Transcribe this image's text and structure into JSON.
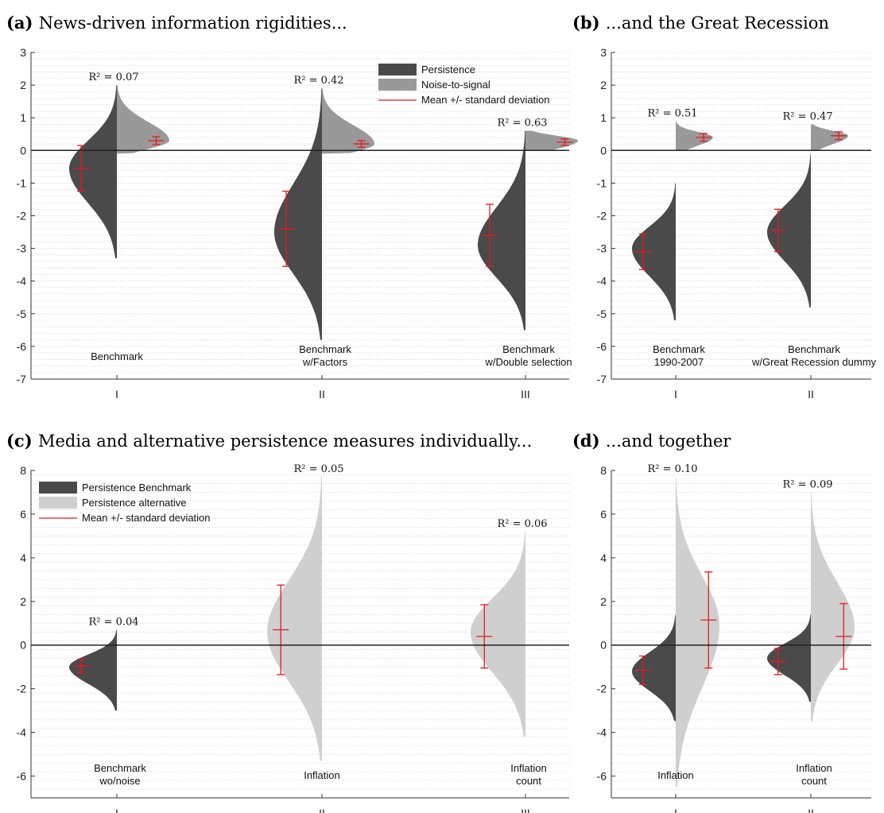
{
  "colors": {
    "persistence": "#4a4a4a",
    "noise": "#999999",
    "alternative": "#cfcfcf",
    "mean": "#e41a1c"
  },
  "chart_data": [
    {
      "id": "a",
      "type": "violin",
      "panel_label": "(a)",
      "title": "News-driven information rigidities...",
      "ylim": [
        -7,
        3
      ],
      "yticks": [
        -7,
        -6,
        -5,
        -4,
        -3,
        -2,
        -1,
        0,
        1,
        2,
        3
      ],
      "grid": true,
      "legend": {
        "placement": "top-right",
        "entries": [
          {
            "label": "Persistence",
            "color": "#4a4a4a",
            "kind": "patch"
          },
          {
            "label": "Noise-to-signal",
            "color": "#999999",
            "kind": "patch"
          },
          {
            "label": "Mean +/- standard deviation",
            "color": "#e41a1c",
            "kind": "line"
          }
        ]
      },
      "groups": [
        {
          "tick": "I",
          "label": [
            "Benchmark"
          ],
          "r2": "R² = 0.07",
          "left": {
            "series": "Persistence",
            "color": "#4a4a4a",
            "mean": -0.55,
            "sd": 0.7,
            "mode": -0.55,
            "min": -3.3,
            "max": 2.0,
            "w": 1.0
          },
          "right": {
            "series": "Noise-to-signal",
            "color": "#999999",
            "mean": 0.3,
            "sd": 0.12,
            "mode": 0.3,
            "min": -0.1,
            "max": 2.0,
            "w": 1.1
          }
        },
        {
          "tick": "II",
          "label": [
            "Benchmark",
            "w/Factors"
          ],
          "r2": "R² = 0.42",
          "left": {
            "series": "Persistence",
            "color": "#4a4a4a",
            "mean": -2.4,
            "sd": 1.15,
            "mode": -2.5,
            "min": -5.8,
            "max": 1.9,
            "w": 1.0
          },
          "right": {
            "series": "Noise-to-signal",
            "color": "#999999",
            "mean": 0.2,
            "sd": 0.1,
            "mode": 0.2,
            "min": -0.1,
            "max": 1.9,
            "w": 1.1
          }
        },
        {
          "tick": "III",
          "label": [
            "Benchmark",
            "w/Double selection"
          ],
          "r2": "R² = 0.63",
          "left": {
            "series": "Persistence",
            "color": "#4a4a4a",
            "mean": -2.6,
            "sd": 0.95,
            "mode": -2.9,
            "min": -5.5,
            "max": 0.6,
            "w": 1.0
          },
          "right": {
            "series": "Noise-to-signal",
            "color": "#999999",
            "mean": 0.25,
            "sd": 0.1,
            "mode": 0.3,
            "min": 0.0,
            "max": 0.6,
            "w": 1.1
          }
        }
      ]
    },
    {
      "id": "b",
      "type": "violin",
      "panel_label": "(b)",
      "title": "...and the Great Recession",
      "ylim": [
        -7,
        3
      ],
      "yticks": [
        -7,
        -6,
        -5,
        -4,
        -3,
        -2,
        -1,
        0,
        1,
        2,
        3
      ],
      "grid": true,
      "groups": [
        {
          "tick": "I",
          "label": [
            "Benchmark",
            "1990-2007"
          ],
          "r2": "R² = 0.51",
          "left": {
            "series": "Persistence",
            "color": "#4a4a4a",
            "mean": -3.1,
            "sd": 0.55,
            "mode": -3.0,
            "min": -5.2,
            "max": -1.0,
            "w": 1.0
          },
          "right": {
            "series": "Noise-to-signal",
            "color": "#999999",
            "mean": 0.4,
            "sd": 0.12,
            "mode": 0.4,
            "min": 0.0,
            "max": 0.9,
            "w": 0.85
          }
        },
        {
          "tick": "II",
          "label": [
            "Benchmark",
            "w/Great Recession dummy"
          ],
          "r2": "R² = 0.47",
          "left": {
            "series": "Persistence",
            "color": "#4a4a4a",
            "mean": -2.45,
            "sd": 0.65,
            "mode": -2.5,
            "min": -4.8,
            "max": -0.1,
            "w": 1.0
          },
          "right": {
            "series": "Noise-to-signal",
            "color": "#999999",
            "mean": 0.45,
            "sd": 0.12,
            "mode": 0.45,
            "min": 0.0,
            "max": 0.8,
            "w": 0.85
          }
        }
      ]
    },
    {
      "id": "c",
      "type": "violin",
      "panel_label": "(c)",
      "title": "Media and alternative persistence measures individually...",
      "ylim": [
        -7,
        8
      ],
      "yticks": [
        -6,
        -4,
        -2,
        0,
        2,
        4,
        6,
        8
      ],
      "grid": true,
      "legend": {
        "placement": "top-left",
        "entries": [
          {
            "label": "Persistence Benchmark",
            "color": "#4a4a4a",
            "kind": "patch"
          },
          {
            "label": "Persistence alternative",
            "color": "#cfcfcf",
            "kind": "patch"
          },
          {
            "label": "Mean +/- standard deviation",
            "color": "#e41a1c",
            "kind": "line"
          }
        ]
      },
      "groups": [
        {
          "tick": "I",
          "label": [
            "Benchmark",
            "wo/noise"
          ],
          "r2": "R² = 0.04",
          "left": {
            "series": "Persistence Benchmark",
            "color": "#4a4a4a",
            "mean": -0.95,
            "sd": 0.3,
            "mode": -1.0,
            "min": -3.0,
            "max": 0.7,
            "w": 1.0
          }
        },
        {
          "tick": "II",
          "label": [
            "Inflation"
          ],
          "r2": "R² = 0.05",
          "left": {
            "series": "Persistence alternative",
            "color": "#cfcfcf",
            "mean": 0.7,
            "sd": 2.05,
            "mode": 0.6,
            "min": -5.3,
            "max": 7.7,
            "w": 1.15
          }
        },
        {
          "tick": "III",
          "label": [
            "Inflation",
            "count"
          ],
          "r2": "R² = 0.06",
          "left": {
            "series": "Persistence alternative",
            "color": "#cfcfcf",
            "mean": 0.4,
            "sd": 1.45,
            "mode": 0.6,
            "min": -4.2,
            "max": 5.2,
            "w": 1.15
          }
        }
      ]
    },
    {
      "id": "d",
      "type": "violin",
      "panel_label": "(d)",
      "title": "...and together",
      "ylim": [
        -7,
        8
      ],
      "yticks": [
        -6,
        -4,
        -2,
        0,
        2,
        4,
        6,
        8
      ],
      "grid": true,
      "groups": [
        {
          "tick": "I",
          "label": [
            "Inflation"
          ],
          "r2": "R² = 0.10",
          "left": {
            "series": "Persistence Benchmark",
            "color": "#4a4a4a",
            "mean": -1.15,
            "sd": 0.65,
            "mode": -1.2,
            "min": -3.5,
            "max": 1.4,
            "w": 1.0
          },
          "right": {
            "series": "Persistence alternative",
            "color": "#cfcfcf",
            "mean": 1.15,
            "sd": 2.2,
            "mode": 0.9,
            "min": -6.5,
            "max": 7.7,
            "w": 1.0
          }
        },
        {
          "tick": "II",
          "label": [
            "Inflation",
            "count"
          ],
          "r2": "R² = 0.09",
          "left": {
            "series": "Persistence Benchmark",
            "color": "#4a4a4a",
            "mean": -0.75,
            "sd": 0.6,
            "mode": -0.6,
            "min": -2.6,
            "max": 1.4,
            "w": 1.0
          },
          "right": {
            "series": "Persistence alternative",
            "color": "#cfcfcf",
            "mean": 0.4,
            "sd": 1.5,
            "mode": 0.8,
            "min": -3.5,
            "max": 7.0,
            "w": 1.0
          }
        }
      ]
    }
  ]
}
